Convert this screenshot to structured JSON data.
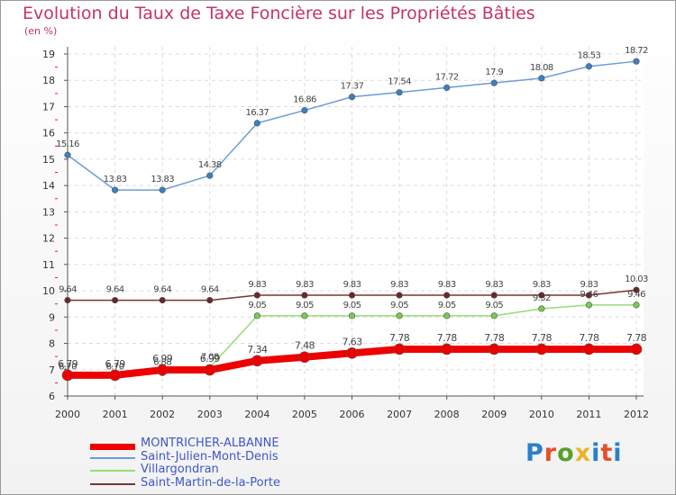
{
  "title": "Evolution du Taux de Taxe Foncière sur les Propriétés Bâties",
  "unit_label": "(en %)",
  "brand": "Proxiti",
  "chart_data": {
    "type": "line",
    "title": "Evolution du Taux de Taxe Foncière sur les Propriétés Bâties",
    "ylabel": "(en %)",
    "xlabel": "",
    "ylim": [
      6,
      19
    ],
    "yticks": [
      "6",
      "7",
      "8",
      "9",
      "10",
      "11",
      "12",
      "13",
      "14",
      "15",
      "16",
      "17",
      "18",
      "19"
    ],
    "categories": [
      "2000",
      "2001",
      "2002",
      "2003",
      "2004",
      "2005",
      "2006",
      "2007",
      "2008",
      "2009",
      "2010",
      "2011",
      "2012"
    ],
    "grid": true,
    "series": [
      {
        "name": "Saint-Julien-Mont-Denis",
        "color": "#6d9dd4",
        "marker": "#3d7fc0",
        "values": [
          15.16,
          13.83,
          13.83,
          14.38,
          16.37,
          16.86,
          17.37,
          17.54,
          17.72,
          17.9,
          18.08,
          18.53,
          18.72
        ],
        "labels": [
          "15.16",
          "13.83",
          "13.83",
          "14.38",
          "16.37",
          "16.86",
          "17.37",
          "17.54",
          "17.72",
          "17.9",
          "18.08",
          "18.53",
          "18.72"
        ]
      },
      {
        "name": "Saint-Martin-de-la-Porte",
        "color": "#7a3333",
        "marker": "#6b2727",
        "values": [
          9.64,
          9.64,
          9.64,
          9.64,
          9.83,
          9.83,
          9.83,
          9.83,
          9.83,
          9.83,
          9.83,
          9.83,
          10.03
        ],
        "labels": [
          "9.64",
          "9.64",
          "9.64",
          "9.64",
          "9.83",
          "9.83",
          "9.83",
          "9.83",
          "9.83",
          "9.83",
          "9.83",
          "9.83",
          "10.03"
        ]
      },
      {
        "name": "Villargondran",
        "color": "#96dc72",
        "marker": "#7cc850",
        "values": [
          6.7,
          6.7,
          6.88,
          7.08,
          9.05,
          9.05,
          9.05,
          9.05,
          9.05,
          9.05,
          9.32,
          9.46,
          9.46
        ],
        "labels": [
          "6.70",
          "6.70",
          "6.88",
          "7.08",
          "9.05",
          "9.05",
          "9.05",
          "9.05",
          "9.05",
          "9.05",
          "9.32",
          "9.46",
          "9.46"
        ]
      },
      {
        "name": "MONTRICHER-ALBANNE",
        "color": "#ee0000",
        "marker": "#ee0000",
        "values": [
          6.79,
          6.79,
          6.99,
          6.99,
          7.34,
          7.48,
          7.63,
          7.78,
          7.78,
          7.78,
          7.78,
          7.78,
          7.78
        ],
        "labels": [
          "6.79",
          "6.79",
          "6.99",
          "6.99",
          "7.34",
          "7.48",
          "7.63",
          "7.78",
          "7.78",
          "7.78",
          "7.78",
          "7.78",
          "7.78"
        ]
      }
    ],
    "legend_order": [
      "MONTRICHER-ALBANNE",
      "Saint-Julien-Mont-Denis",
      "Villargondran",
      "Saint-Martin-de-la-Porte"
    ],
    "legend_position": "bottom-left"
  }
}
